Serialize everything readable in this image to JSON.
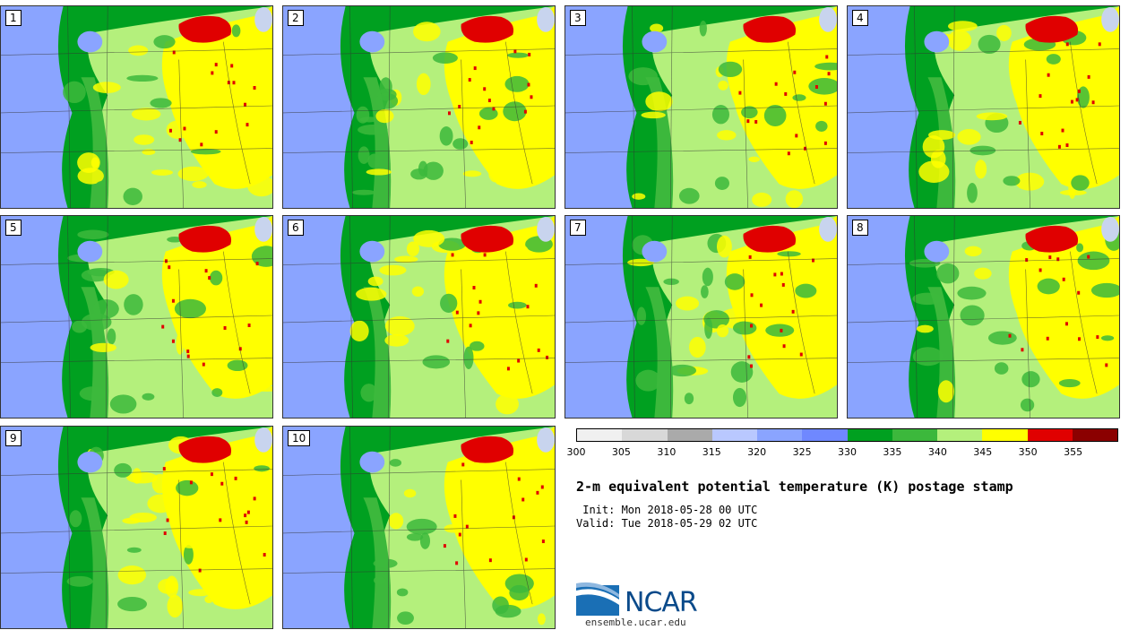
{
  "panels": [
    "1",
    "2",
    "3",
    "4",
    "5",
    "6",
    "7",
    "8",
    "9",
    "10"
  ],
  "colorbar": {
    "colors": [
      "#f0f0f0",
      "#d8d8d8",
      "#aaaaaa",
      "#b9c8ff",
      "#8aa4ff",
      "#6f88ff",
      "#00a020",
      "#3cb83c",
      "#b4f07c",
      "#ffff00",
      "#e00000",
      "#8b0000"
    ],
    "ticks": [
      "300",
      "305",
      "310",
      "315",
      "320",
      "325",
      "330",
      "335",
      "340",
      "345",
      "350",
      "355"
    ]
  },
  "title": "2-m equivalent potential temperature (K) postage stamp",
  "init": " Init: Mon 2018-05-28 00 UTC",
  "valid": "Valid: Tue 2018-05-29 02 UTC",
  "logo": {
    "name": "NCAR",
    "site": "ensemble.ucar.edu"
  }
}
